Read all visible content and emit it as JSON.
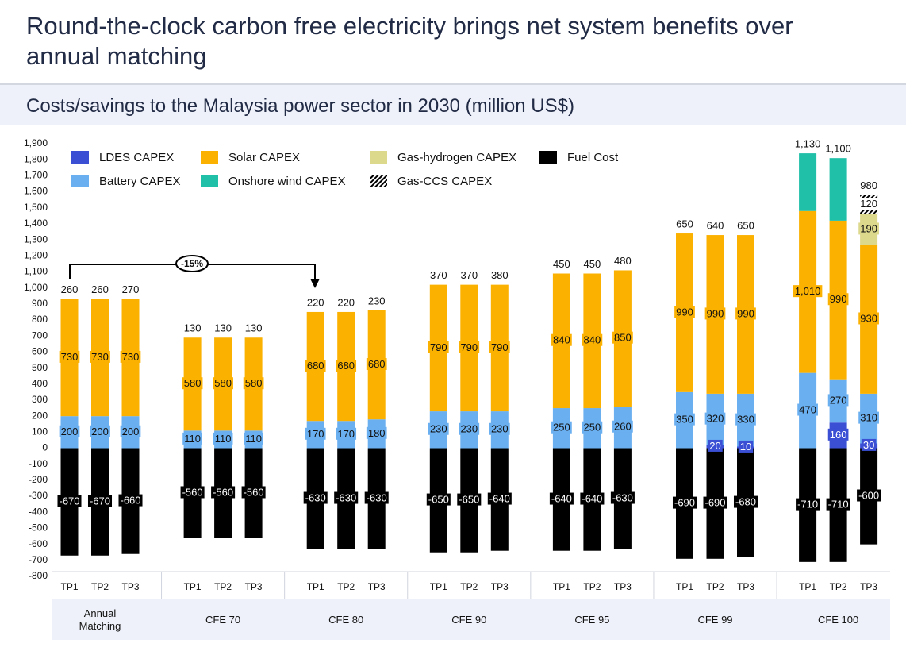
{
  "chart_data": {
    "type": "stacked-bar",
    "title": "Round-the-clock carbon free electricity brings net system benefits over annual matching",
    "subtitle": "Costs/savings to the Malaysia power sector in 2030 (million US$)",
    "annotation": "-15%",
    "groups": [
      "Annual Matching",
      "CFE 70",
      "CFE 80",
      "CFE 90",
      "CFE 95",
      "CFE 99",
      "CFE 100"
    ],
    "categories": [
      "TP1",
      "TP2",
      "TP3",
      "TP1",
      "TP2",
      "TP3",
      "TP1",
      "TP2",
      "TP3",
      "TP1",
      "TP2",
      "TP3",
      "TP1",
      "TP2",
      "TP3",
      "TP1",
      "TP2",
      "TP3",
      "TP1",
      "TP2",
      "TP3"
    ],
    "ylim": [
      -800,
      1900
    ],
    "yticks": [
      -800,
      -700,
      -600,
      -500,
      -400,
      -300,
      -200,
      -100,
      0,
      100,
      200,
      300,
      400,
      500,
      600,
      700,
      800,
      900,
      {
        "value": 1000,
        "label": "1,000"
      },
      {
        "value": 1100,
        "label": "1,100"
      },
      {
        "value": 1200,
        "label": "1,200"
      },
      {
        "value": 1300,
        "label": "1,300"
      },
      {
        "value": 1400,
        "label": "1,400"
      },
      {
        "value": 1500,
        "label": "1,500"
      },
      {
        "value": 1600,
        "label": "1,600"
      },
      {
        "value": 1700,
        "label": "1,700"
      },
      {
        "value": 1800,
        "label": "1,800"
      },
      {
        "value": 1900,
        "label": "1,900"
      }
    ],
    "grid": false,
    "series": [
      {
        "name": "LDES CAPEX",
        "color": "#3a4fd4",
        "label_color": "#ffffff",
        "values": [
          null,
          null,
          null,
          null,
          null,
          null,
          null,
          null,
          null,
          null,
          null,
          null,
          null,
          null,
          null,
          null,
          20,
          10,
          null,
          160,
          30
        ]
      },
      {
        "name": "Battery CAPEX",
        "color": "#6aaff0",
        "label_color": "#111111",
        "values": [
          200,
          200,
          200,
          110,
          110,
          110,
          170,
          170,
          180,
          230,
          230,
          230,
          250,
          250,
          260,
          350,
          320,
          330,
          470,
          270,
          310
        ]
      },
      {
        "name": "Solar CAPEX",
        "color": "#fbb100",
        "label_color": "#111111",
        "values": [
          730,
          730,
          730,
          580,
          580,
          580,
          680,
          680,
          680,
          790,
          790,
          790,
          840,
          840,
          850,
          990,
          990,
          990,
          1010,
          990,
          930
        ],
        "value_labels": [
          "730",
          "730",
          "730",
          "580",
          "580",
          "580",
          "680",
          "680",
          "680",
          "790",
          "790",
          "790",
          "840",
          "840",
          "850",
          "990",
          "990",
          "990",
          "1,010",
          "990",
          "930"
        ]
      },
      {
        "name": "Onshore wind CAPEX",
        "color": "#1fbfa8",
        "labels": false,
        "values": [
          null,
          null,
          null,
          null,
          null,
          null,
          null,
          null,
          null,
          null,
          null,
          null,
          null,
          null,
          null,
          null,
          null,
          null,
          360,
          390,
          null
        ]
      },
      {
        "name": "Gas-hydrogen CAPEX",
        "color": "#dcd88c",
        "label_color": "#111111",
        "values": [
          null,
          null,
          null,
          null,
          null,
          null,
          null,
          null,
          null,
          null,
          null,
          null,
          null,
          null,
          null,
          null,
          null,
          null,
          null,
          null,
          190
        ]
      },
      {
        "name": "Gas-CCS CAPEX",
        "color": "#000000",
        "pattern": "hatch",
        "label_color": "#111111",
        "values": [
          null,
          null,
          null,
          null,
          null,
          null,
          null,
          null,
          null,
          null,
          null,
          null,
          null,
          null,
          null,
          null,
          null,
          null,
          null,
          null,
          120
        ]
      },
      {
        "name": "Fuel Cost",
        "color": "#000000",
        "label_color": "#ffffff",
        "values": [
          -670,
          -670,
          -660,
          -560,
          -560,
          -560,
          -630,
          -630,
          -630,
          -650,
          -650,
          -640,
          -640,
          -640,
          -630,
          -690,
          -690,
          -680,
          -710,
          -710,
          -600
        ]
      }
    ],
    "net": {
      "values": [
        260,
        260,
        270,
        130,
        130,
        130,
        220,
        220,
        230,
        370,
        370,
        380,
        450,
        450,
        480,
        650,
        640,
        650,
        1130,
        1100,
        980
      ],
      "value_labels": [
        "260",
        "260",
        "270",
        "130",
        "130",
        "130",
        "220",
        "220",
        "230",
        "370",
        "370",
        "380",
        "450",
        "450",
        "480",
        "650",
        "640",
        "650",
        "1,130",
        "1,100",
        "980"
      ]
    }
  }
}
